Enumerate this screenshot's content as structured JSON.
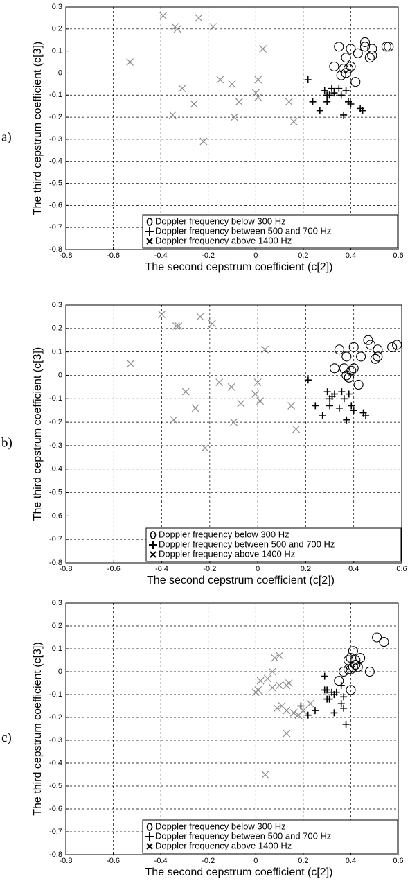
{
  "chart_data": [
    {
      "type": "scatter",
      "panel_label": "a)",
      "xlabel": "The second cepstrum coefficient (c[2])",
      "ylabel": "The third cepstrum coefficient (c[3])",
      "xlim": [
        -0.8,
        0.6
      ],
      "ylim": [
        -0.8,
        0.3
      ],
      "xticks": [
        -0.8,
        -0.6,
        -0.4,
        -0.2,
        0,
        0.2,
        0.4,
        0.6
      ],
      "yticks": [
        0.3,
        0.2,
        0.1,
        0,
        -0.1,
        -0.2,
        -0.3,
        -0.4,
        -0.5,
        -0.6,
        -0.7,
        -0.8
      ],
      "grid": true,
      "legend": "lower right",
      "series": [
        {
          "name": "Doppler frequency below 300 Hz",
          "color": "#000000",
          "marker": "o",
          "x": [
            0.35,
            0.38,
            0.4,
            0.43,
            0.46,
            0.46,
            0.48,
            0.49,
            0.49,
            0.55,
            0.56,
            0.33,
            0.37,
            0.39,
            0.4,
            0.36,
            0.42,
            0.38
          ],
          "values": [
            0.12,
            0.07,
            0.11,
            0.09,
            0.14,
            0.12,
            0.07,
            0.08,
            0.11,
            0.12,
            0.12,
            0.03,
            0.02,
            0.02,
            0.03,
            -0.01,
            -0.04,
            0.0
          ]
        },
        {
          "name": "Doppler frequency between 500 and 700 Hz",
          "color": "#000000",
          "marker": "+",
          "x": [
            0.22,
            0.24,
            0.27,
            0.29,
            0.3,
            0.31,
            0.32,
            0.35,
            0.36,
            0.37,
            0.38,
            0.39,
            0.4,
            0.44,
            0.45,
            0.3,
            0.33
          ],
          "values": [
            -0.03,
            -0.13,
            -0.17,
            -0.08,
            -0.1,
            -0.1,
            -0.07,
            -0.07,
            -0.1,
            -0.19,
            -0.08,
            -0.13,
            -0.14,
            -0.16,
            -0.17,
            -0.13,
            -0.09
          ]
        },
        {
          "name": "Doppler frequency above 1400 Hz",
          "color": "#8c8c8c",
          "marker": "x",
          "x": [
            -0.39,
            -0.34,
            -0.33,
            -0.24,
            -0.18,
            -0.53,
            0.03,
            -0.31,
            -0.26,
            -0.35,
            -0.22,
            -0.15,
            -0.1,
            -0.07,
            -0.09,
            0.0,
            0.01,
            0.01,
            0.14,
            0.16
          ],
          "values": [
            0.26,
            0.21,
            0.2,
            0.25,
            0.21,
            0.05,
            0.11,
            -0.07,
            -0.14,
            -0.19,
            -0.31,
            -0.03,
            -0.05,
            -0.13,
            -0.2,
            -0.09,
            -0.03,
            -0.11,
            -0.13,
            -0.22
          ]
        }
      ]
    },
    {
      "type": "scatter",
      "panel_label": "b)",
      "xlabel": "The second cepstrum coefficient (c[2])",
      "ylabel": "The third cepstrum coefficient (c[3])",
      "xlim": [
        -0.8,
        0.6
      ],
      "ylim": [
        -0.8,
        0.3
      ],
      "xticks": [
        -0.8,
        -0.6,
        -0.4,
        -0.2,
        0,
        0.2,
        0.4,
        0.6
      ],
      "yticks": [
        0.3,
        0.2,
        0.1,
        0,
        -0.1,
        -0.2,
        -0.3,
        -0.4,
        -0.5,
        -0.6,
        -0.7,
        -0.8
      ],
      "grid": true,
      "legend": "lower right",
      "series": [
        {
          "name": "Doppler frequency below 300 Hz",
          "color": "#000000",
          "marker": "o",
          "x": [
            0.34,
            0.37,
            0.4,
            0.43,
            0.46,
            0.47,
            0.49,
            0.5,
            0.5,
            0.56,
            0.58,
            0.32,
            0.36,
            0.39,
            0.4,
            0.37,
            0.42,
            0.38
          ],
          "values": [
            0.11,
            0.08,
            0.12,
            0.08,
            0.15,
            0.13,
            0.07,
            0.08,
            0.11,
            0.12,
            0.13,
            0.03,
            0.03,
            0.02,
            0.03,
            0.0,
            -0.04,
            -0.01
          ]
        },
        {
          "name": "Doppler frequency between 500 and 700 Hz",
          "color": "#000000",
          "marker": "+",
          "x": [
            0.21,
            0.24,
            0.27,
            0.29,
            0.3,
            0.31,
            0.32,
            0.35,
            0.36,
            0.37,
            0.38,
            0.39,
            0.4,
            0.44,
            0.45,
            0.3,
            0.34
          ],
          "values": [
            -0.02,
            -0.13,
            -0.17,
            -0.07,
            -0.1,
            -0.09,
            -0.08,
            -0.07,
            -0.1,
            -0.19,
            -0.08,
            -0.13,
            -0.15,
            -0.16,
            -0.17,
            -0.13,
            -0.14
          ]
        },
        {
          "name": "Doppler frequency above 1400 Hz",
          "color": "#8c8c8c",
          "marker": "x",
          "x": [
            -0.4,
            -0.34,
            -0.33,
            -0.24,
            -0.19,
            -0.53,
            0.03,
            -0.3,
            -0.26,
            -0.35,
            -0.22,
            -0.16,
            -0.11,
            -0.07,
            -0.1,
            -0.01,
            0.0,
            0.01,
            0.14,
            0.16
          ],
          "values": [
            0.26,
            0.21,
            0.21,
            0.25,
            0.22,
            0.05,
            0.11,
            -0.07,
            -0.14,
            -0.19,
            -0.31,
            -0.03,
            -0.05,
            -0.12,
            -0.2,
            -0.08,
            -0.03,
            -0.11,
            -0.13,
            -0.23
          ]
        }
      ]
    },
    {
      "type": "scatter",
      "panel_label": "c)",
      "xlabel": "The second cepstrum coefficient (c[2])",
      "ylabel": "The third cepstrum coefficient (c[3])",
      "xlim": [
        -0.8,
        0.6
      ],
      "ylim": [
        -0.8,
        0.3
      ],
      "xticks": [
        -0.8,
        -0.6,
        -0.4,
        -0.2,
        0,
        0.2,
        0.4,
        0.6
      ],
      "yticks": [
        0.3,
        0.2,
        0.1,
        0,
        -0.1,
        -0.2,
        -0.3,
        -0.4,
        -0.5,
        -0.6,
        -0.7,
        -0.8
      ],
      "grid": true,
      "legend": "lower right",
      "series": [
        {
          "name": "Doppler frequency below 300 Hz",
          "color": "#000000",
          "marker": "o",
          "x": [
            0.37,
            0.39,
            0.4,
            0.41,
            0.42,
            0.42,
            0.44,
            0.4,
            0.41,
            0.43,
            0.48,
            0.51,
            0.54,
            0.35,
            0.4,
            0.39
          ],
          "values": [
            0.0,
            0.05,
            0.06,
            0.09,
            0.05,
            0.03,
            0.06,
            0.01,
            0.02,
            0.02,
            0.0,
            0.15,
            0.13,
            -0.04,
            -0.08,
            0.01
          ]
        },
        {
          "name": "Doppler frequency between 500 and 700 Hz",
          "color": "#000000",
          "marker": "+",
          "x": [
            0.29,
            0.29,
            0.3,
            0.31,
            0.32,
            0.33,
            0.34,
            0.36,
            0.37,
            0.38,
            0.37,
            0.33,
            0.25,
            0.22,
            0.19,
            0.3,
            0.36
          ],
          "values": [
            -0.02,
            -0.08,
            -0.12,
            -0.12,
            -0.09,
            -0.1,
            -0.09,
            -0.14,
            -0.16,
            -0.23,
            -0.11,
            -0.18,
            -0.17,
            -0.19,
            -0.15,
            -0.08,
            -0.06
          ]
        },
        {
          "name": "Doppler frequency above 1400 Hz",
          "color": "#8c8c8c",
          "marker": "x",
          "x": [
            0.0,
            0.02,
            0.05,
            0.07,
            0.08,
            0.1,
            0.07,
            0.1,
            0.13,
            0.11,
            0.13,
            0.16,
            0.18,
            0.2,
            0.23,
            0.13,
            0.04,
            0.09,
            0.01,
            0.14
          ],
          "values": [
            -0.09,
            -0.04,
            -0.03,
            0.0,
            0.06,
            0.07,
            -0.07,
            -0.06,
            -0.06,
            -0.15,
            -0.17,
            -0.18,
            -0.19,
            -0.17,
            -0.14,
            -0.27,
            -0.45,
            -0.16,
            -0.08,
            -0.05
          ]
        }
      ]
    }
  ]
}
